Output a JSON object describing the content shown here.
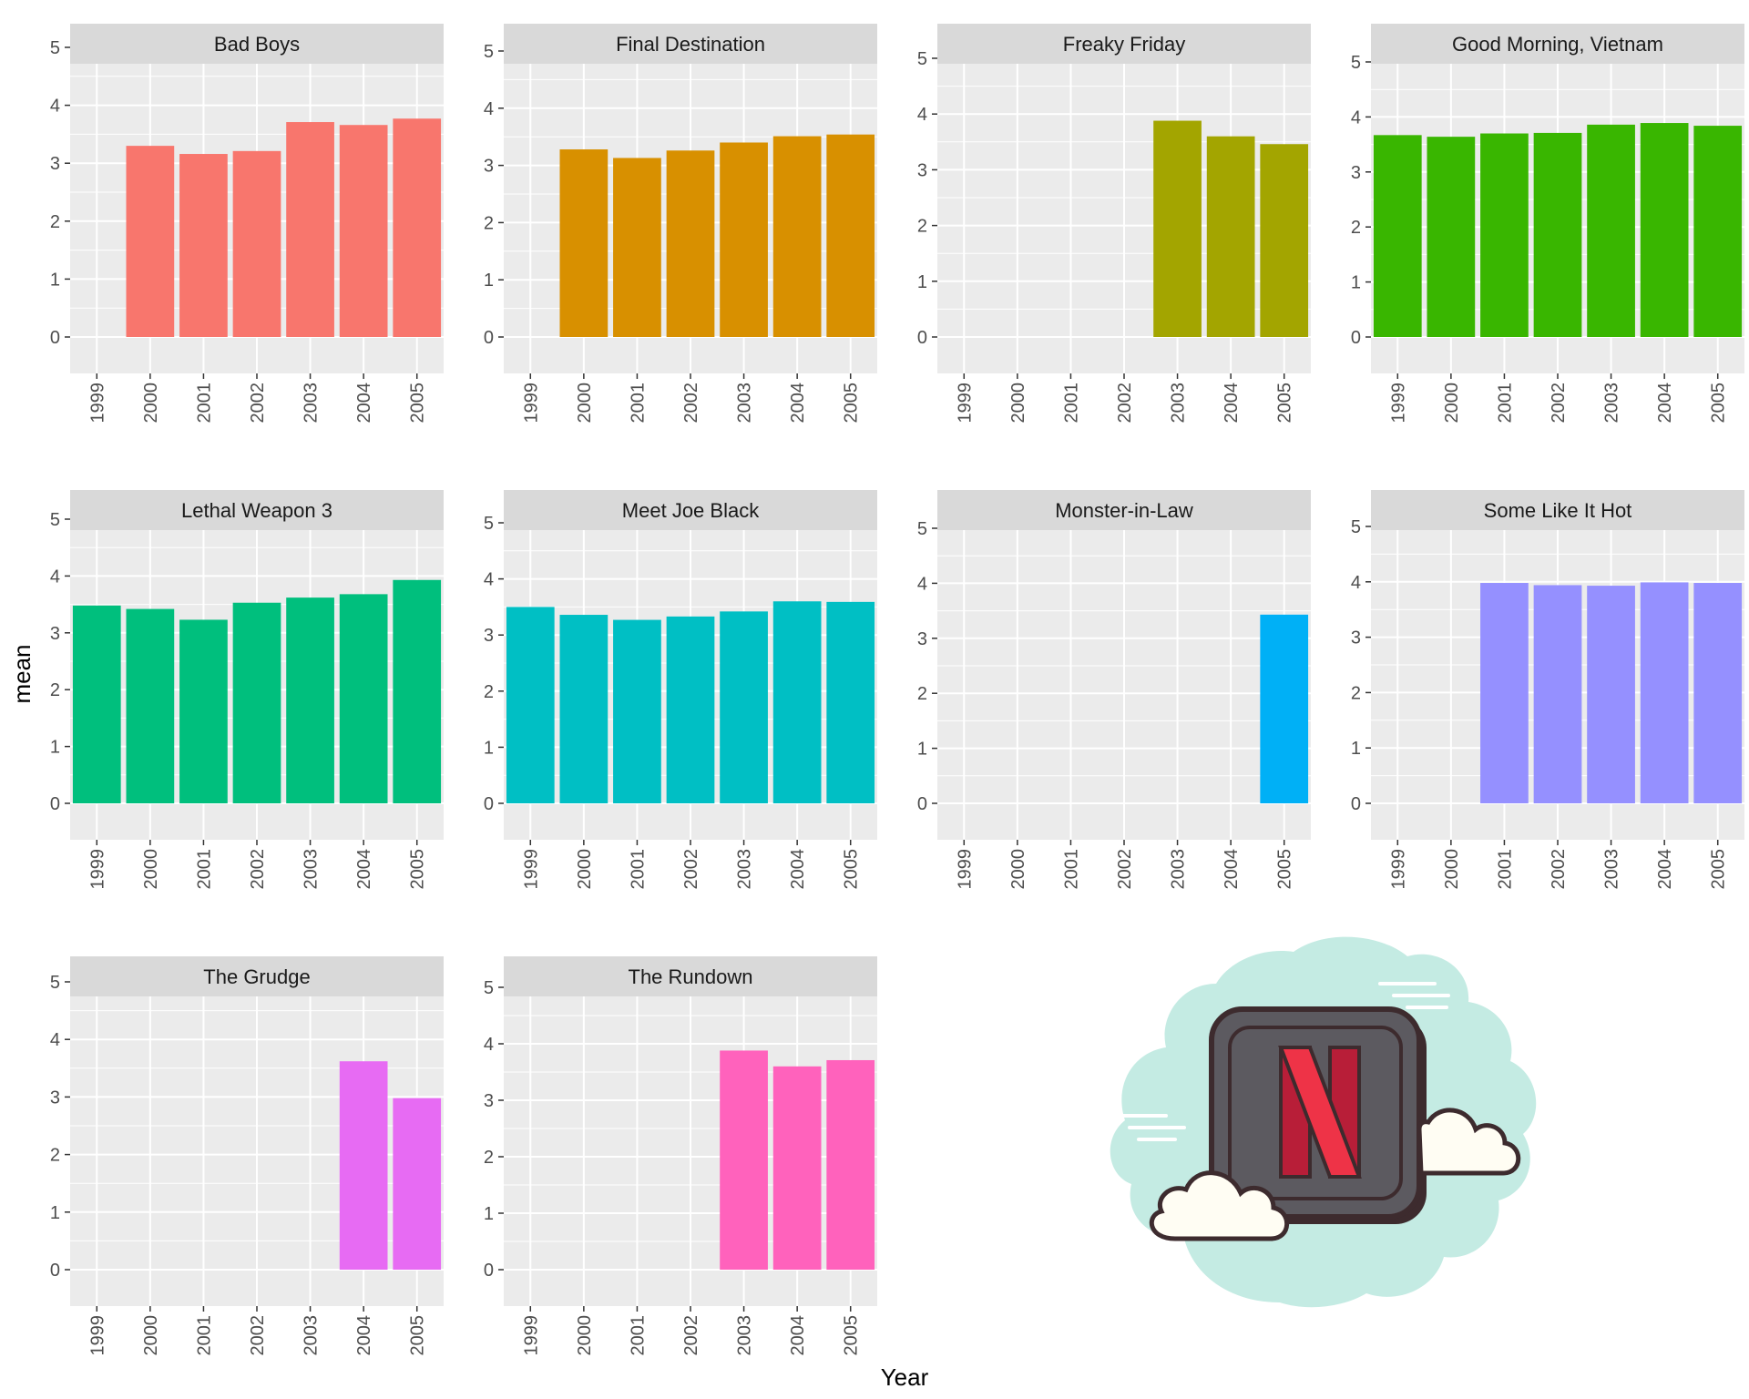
{
  "chart_data": {
    "type": "bar",
    "facet": "wrap",
    "xlabel": "Year",
    "ylabel": "mean",
    "x_ticks": [
      "1999",
      "2000",
      "2001",
      "2002",
      "2003",
      "2004",
      "2005"
    ],
    "y_ticks": [
      "0",
      "1",
      "2",
      "3",
      "4",
      "5"
    ],
    "ylim": [
      0,
      5
    ],
    "grid": true,
    "legend": "none",
    "scales": "free_y",
    "panels": [
      {
        "name": "Bad Boys",
        "color": "#F8766D",
        "x": [
          "2000",
          "2001",
          "2002",
          "2003",
          "2004",
          "2005"
        ],
        "values": [
          3.3,
          3.16,
          3.21,
          3.71,
          3.66,
          3.77
        ]
      },
      {
        "name": "Final Destination",
        "color": "#D89000",
        "x": [
          "2000",
          "2001",
          "2002",
          "2003",
          "2004",
          "2005"
        ],
        "values": [
          3.28,
          3.13,
          3.26,
          3.4,
          3.51,
          3.54
        ]
      },
      {
        "name": "Freaky Friday",
        "color": "#A3A500",
        "x": [
          "2003",
          "2004",
          "2005"
        ],
        "values": [
          3.88,
          3.6,
          3.46
        ]
      },
      {
        "name": "Good Morning, Vietnam",
        "color": "#39B600",
        "x": [
          "1999",
          "2000",
          "2001",
          "2002",
          "2003",
          "2004",
          "2005"
        ],
        "values": [
          3.67,
          3.64,
          3.7,
          3.71,
          3.86,
          3.89,
          3.84
        ]
      },
      {
        "name": "Lethal Weapon 3",
        "color": "#00BF7D",
        "x": [
          "1999",
          "2000",
          "2001",
          "2002",
          "2003",
          "2004",
          "2005"
        ],
        "values": [
          3.48,
          3.42,
          3.23,
          3.53,
          3.62,
          3.68,
          3.93
        ]
      },
      {
        "name": "Meet Joe Black",
        "color": "#00BFC4",
        "x": [
          "1999",
          "2000",
          "2001",
          "2002",
          "2003",
          "2004",
          "2005"
        ],
        "values": [
          3.5,
          3.36,
          3.27,
          3.33,
          3.42,
          3.6,
          3.59
        ]
      },
      {
        "name": "Monster-in-Law",
        "color": "#00B0F6",
        "x": [
          "2005"
        ],
        "values": [
          3.43
        ]
      },
      {
        "name": "Some Like It Hot",
        "color": "#9590FF",
        "x": [
          "2001",
          "2002",
          "2003",
          "2004",
          "2005"
        ],
        "values": [
          3.98,
          3.94,
          3.93,
          3.99,
          3.98
        ]
      },
      {
        "name": "The Grudge",
        "color": "#E76BF3",
        "x": [
          "2004",
          "2005"
        ],
        "values": [
          3.62,
          2.98
        ]
      },
      {
        "name": "The Rundown",
        "color": "#FF62BC",
        "x": [
          "2003",
          "2004",
          "2005"
        ],
        "values": [
          3.88,
          3.6,
          3.71
        ]
      }
    ]
  },
  "logo": {
    "icon": "netflix-cloud-icon",
    "letter": "N",
    "colors": {
      "cloud": "#C4EBE3",
      "tile": "#5C5A60",
      "outline": "#3D2B2E",
      "letter": "#EE3347",
      "letter_shade": "#B81E38",
      "small_cloud": "#FFFDF3"
    }
  }
}
